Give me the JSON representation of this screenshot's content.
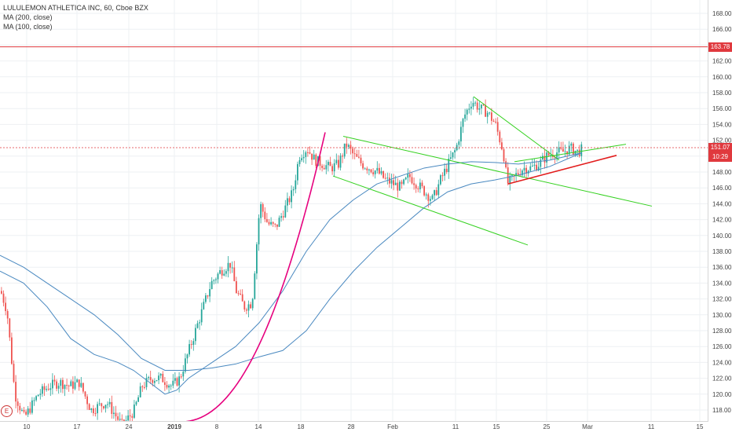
{
  "legend": {
    "symbol": "LULULEMON ATHLETICA INC, 60, Cboe BZX",
    "ma1": "MA (200, close)",
    "ma2": "MA (100, close)"
  },
  "price_badges": {
    "alert": "163.78",
    "last": "151.07",
    "countdown": "10:29"
  },
  "events_button": "E",
  "colors": {
    "up": "#26a69a",
    "down": "#ef5350",
    "ma": "#4a89c0",
    "alert": "#e0393e",
    "trend_green": "#34d11f",
    "trend_red": "#e21d1d",
    "parabola": "#e6007e"
  },
  "chart_data": {
    "type": "candlestick",
    "y_ticks": [
      "168.00",
      "166.00",
      "164.00",
      "162.00",
      "160.00",
      "158.00",
      "156.00",
      "154.00",
      "152.00",
      "150.00",
      "148.00",
      "146.00",
      "144.00",
      "142.00",
      "140.00",
      "138.00",
      "136.00",
      "134.00",
      "132.00",
      "130.00",
      "128.00",
      "126.00",
      "124.00",
      "122.00",
      "120.00",
      "118.00"
    ],
    "ylim": [
      116.5,
      169.5
    ],
    "x_ticks": [
      "10",
      "17",
      "24",
      "2019",
      "8",
      "14",
      "18",
      "28",
      "Feb",
      "11",
      "15",
      "25",
      "Mar",
      "11",
      "15"
    ],
    "alert_price": 163.78,
    "last_price": 151.07,
    "close_path": [
      [
        0,
        133
      ],
      [
        8,
        130.5
      ],
      [
        18,
        120
      ],
      [
        30,
        117
      ],
      [
        48,
        120
      ],
      [
        62,
        121
      ],
      [
        75,
        121.5
      ],
      [
        88,
        121
      ],
      [
        100,
        121.5
      ],
      [
        115,
        118
      ],
      [
        135,
        119
      ],
      [
        155,
        116
      ],
      [
        170,
        118
      ],
      [
        180,
        121
      ],
      [
        192,
        122
      ],
      [
        205,
        122
      ],
      [
        218,
        121
      ],
      [
        228,
        122
      ],
      [
        238,
        125
      ],
      [
        248,
        128
      ],
      [
        258,
        131
      ],
      [
        268,
        134
      ],
      [
        280,
        135.5
      ],
      [
        292,
        136.5
      ],
      [
        300,
        133
      ],
      [
        310,
        131
      ],
      [
        320,
        131.5
      ],
      [
        330,
        144
      ],
      [
        340,
        141.5
      ],
      [
        350,
        141
      ],
      [
        360,
        143
      ],
      [
        372,
        145.5
      ],
      [
        380,
        150
      ],
      [
        390,
        151
      ],
      [
        400,
        149.5
      ],
      [
        410,
        149
      ],
      [
        420,
        148.5
      ],
      [
        430,
        149
      ],
      [
        440,
        151.5
      ],
      [
        450,
        150
      ],
      [
        460,
        149
      ],
      [
        470,
        148.5
      ],
      [
        480,
        148
      ],
      [
        490,
        147
      ],
      [
        500,
        146.5
      ],
      [
        510,
        146
      ],
      [
        520,
        147.5
      ],
      [
        530,
        146.5
      ],
      [
        540,
        145.5
      ],
      [
        550,
        144.5
      ],
      [
        560,
        147
      ],
      [
        570,
        149
      ],
      [
        580,
        151
      ],
      [
        590,
        155
      ],
      [
        600,
        157
      ],
      [
        610,
        156
      ],
      [
        620,
        155.5
      ],
      [
        630,
        154
      ],
      [
        640,
        150.5
      ],
      [
        645,
        146.5
      ],
      [
        655,
        147.5
      ],
      [
        665,
        148.5
      ],
      [
        675,
        148.5
      ],
      [
        685,
        149
      ],
      [
        695,
        150
      ],
      [
        705,
        150.5
      ],
      [
        715,
        150.5
      ],
      [
        725,
        151
      ],
      [
        735,
        150.5
      ],
      [
        742,
        151
      ]
    ],
    "ma200": [
      [
        0,
        137.5
      ],
      [
        30,
        136
      ],
      [
        60,
        134
      ],
      [
        90,
        132
      ],
      [
        120,
        130
      ],
      [
        150,
        127.5
      ],
      [
        180,
        124.5
      ],
      [
        210,
        123
      ],
      [
        240,
        123
      ],
      [
        270,
        123.3
      ],
      [
        300,
        123.8
      ],
      [
        330,
        124.7
      ],
      [
        360,
        125.5
      ],
      [
        390,
        128
      ],
      [
        420,
        132
      ],
      [
        450,
        135.5
      ],
      [
        480,
        138.5
      ],
      [
        510,
        141
      ],
      [
        540,
        143.5
      ],
      [
        570,
        145.5
      ],
      [
        600,
        146.5
      ],
      [
        630,
        147
      ],
      [
        660,
        147.6
      ],
      [
        700,
        148.7
      ],
      [
        740,
        150.4
      ]
    ],
    "ma100": [
      [
        0,
        135.5
      ],
      [
        30,
        134
      ],
      [
        60,
        131
      ],
      [
        90,
        127
      ],
      [
        120,
        125
      ],
      [
        150,
        124
      ],
      [
        170,
        123
      ],
      [
        190,
        121.5
      ],
      [
        210,
        120
      ],
      [
        225,
        120.5
      ],
      [
        240,
        122
      ],
      [
        270,
        124
      ],
      [
        300,
        126
      ],
      [
        330,
        129
      ],
      [
        360,
        133
      ],
      [
        390,
        138
      ],
      [
        420,
        142
      ],
      [
        450,
        144.5
      ],
      [
        480,
        146.5
      ],
      [
        510,
        147.5
      ],
      [
        540,
        148.5
      ],
      [
        570,
        149
      ],
      [
        600,
        149.3
      ],
      [
        630,
        149.2
      ],
      [
        660,
        149
      ],
      [
        700,
        149.5
      ],
      [
        740,
        150.4
      ]
    ],
    "trendlines": [
      {
        "color": "green",
        "from": [
          437,
          152.5
        ],
        "to": [
          830,
          143.7
        ]
      },
      {
        "color": "green",
        "from": [
          424,
          147.5
        ],
        "to": [
          672,
          138.8
        ]
      },
      {
        "color": "green",
        "from": [
          603,
          157.5
        ],
        "to": [
          712,
          149.5
        ]
      },
      {
        "color": "green",
        "from": [
          655,
          149.3
        ],
        "to": [
          797,
          151.5
        ]
      },
      {
        "color": "red",
        "from": [
          647,
          146.5
        ],
        "to": [
          785,
          150.1
        ]
      }
    ],
    "parabola": {
      "from": [
        228,
        116.5
      ],
      "to": [
        414,
        153
      ]
    }
  }
}
